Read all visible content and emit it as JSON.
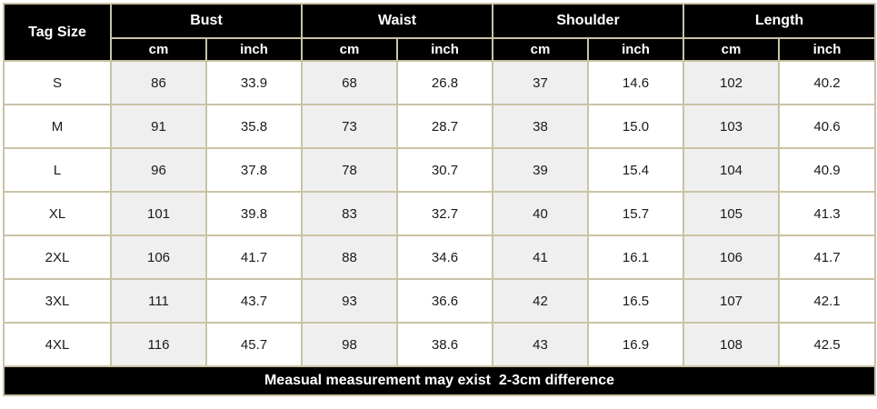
{
  "header": {
    "tag_size": "Tag Size",
    "groups": [
      "Bust",
      "Waist",
      "Shoulder",
      "Length"
    ],
    "unit_cm": "cm",
    "unit_inch": "inch"
  },
  "rows": [
    {
      "size": "S",
      "bust_cm": "86",
      "bust_in": "33.9",
      "waist_cm": "68",
      "waist_in": "26.8",
      "shoulder_cm": "37",
      "shoulder_in": "14.6",
      "length_cm": "102",
      "length_in": "40.2"
    },
    {
      "size": "M",
      "bust_cm": "91",
      "bust_in": "35.8",
      "waist_cm": "73",
      "waist_in": "28.7",
      "shoulder_cm": "38",
      "shoulder_in": "15.0",
      "length_cm": "103",
      "length_in": "40.6"
    },
    {
      "size": "L",
      "bust_cm": "96",
      "bust_in": "37.8",
      "waist_cm": "78",
      "waist_in": "30.7",
      "shoulder_cm": "39",
      "shoulder_in": "15.4",
      "length_cm": "104",
      "length_in": "40.9"
    },
    {
      "size": "XL",
      "bust_cm": "101",
      "bust_in": "39.8",
      "waist_cm": "83",
      "waist_in": "32.7",
      "shoulder_cm": "40",
      "shoulder_in": "15.7",
      "length_cm": "105",
      "length_in": "41.3"
    },
    {
      "size": "2XL",
      "bust_cm": "106",
      "bust_in": "41.7",
      "waist_cm": "88",
      "waist_in": "34.6",
      "shoulder_cm": "41",
      "shoulder_in": "16.1",
      "length_cm": "106",
      "length_in": "41.7"
    },
    {
      "size": "3XL",
      "bust_cm": "111",
      "bust_in": "43.7",
      "waist_cm": "93",
      "waist_in": "36.6",
      "shoulder_cm": "42",
      "shoulder_in": "16.5",
      "length_cm": "107",
      "length_in": "42.1"
    },
    {
      "size": "4XL",
      "bust_cm": "116",
      "bust_in": "45.7",
      "waist_cm": "98",
      "waist_in": "38.6",
      "shoulder_cm": "43",
      "shoulder_in": "16.9",
      "length_cm": "108",
      "length_in": "42.5"
    }
  ],
  "footer": {
    "note": "Measual measurement may exist  2-3cm difference"
  },
  "colors": {
    "header_bg": "#000000",
    "header_text": "#ffffff",
    "cm_column_bg": "#efefef",
    "grid_line": "#c9c3a6"
  }
}
